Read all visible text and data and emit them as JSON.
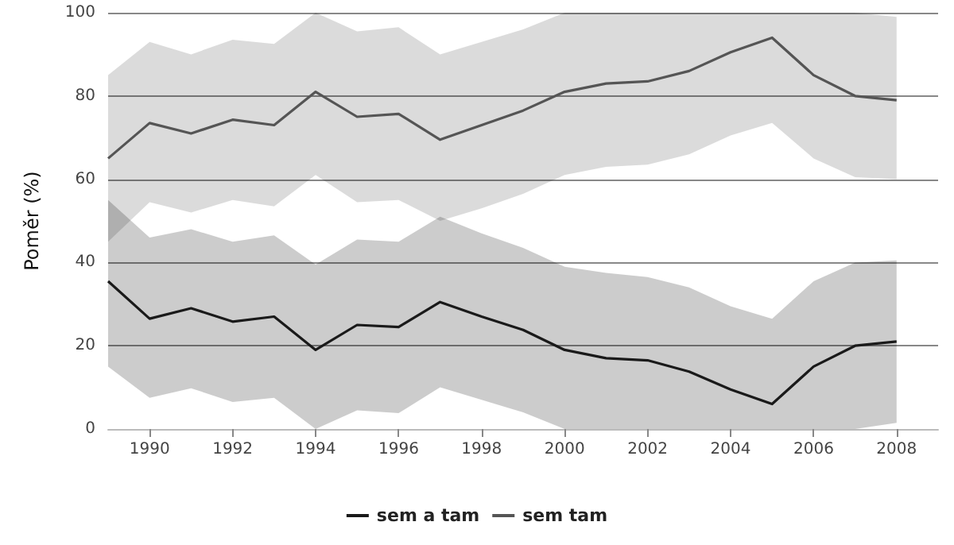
{
  "chart_data": {
    "type": "line",
    "ylabel": "Poměr (%)",
    "x": [
      1989,
      1990,
      1991,
      1992,
      1993,
      1994,
      1995,
      1996,
      1997,
      1998,
      1999,
      2000,
      2001,
      2002,
      2003,
      2004,
      2005,
      2006,
      2007,
      2008
    ],
    "series": [
      {
        "name": "sem a tam",
        "color": "#1a1a1a",
        "values": [
          35.5,
          26.5,
          29,
          25.8,
          27,
          19,
          25,
          24.5,
          30.5,
          27,
          23.8,
          19,
          17,
          16.5,
          13.8,
          9.5,
          6,
          15,
          20,
          21
        ],
        "lower": [
          15,
          7.5,
          9.8,
          6.5,
          7.5,
          0,
          4.5,
          3.8,
          10,
          7,
          4,
          0,
          0,
          0,
          0,
          0,
          0,
          0,
          0,
          1.5
        ],
        "upper": [
          55,
          46,
          48,
          45,
          46.5,
          39.5,
          45.5,
          45,
          51,
          47,
          43.5,
          39,
          37.5,
          36.5,
          34,
          29.5,
          26.5,
          35.5,
          40,
          40.5
        ]
      },
      {
        "name": "sem tam",
        "color": "#555555",
        "values": [
          65,
          73.5,
          71,
          74.3,
          73,
          81,
          75,
          75.7,
          69.5,
          73,
          76.5,
          81,
          83,
          83.5,
          86,
          90.5,
          94,
          85,
          80,
          79
        ],
        "lower": [
          45,
          54.5,
          52,
          55,
          53.5,
          61,
          54.5,
          55,
          50,
          53,
          56.5,
          61,
          63,
          63.5,
          66,
          70.5,
          73.5,
          65,
          60.5,
          60
        ],
        "upper": [
          85,
          93,
          90,
          93.5,
          92.5,
          100,
          95.5,
          96.5,
          90,
          93,
          96,
          100,
          100,
          100,
          100,
          100,
          100,
          100,
          100,
          99
        ]
      }
    ],
    "xlim": [
      1989,
      2009
    ],
    "xticks": [
      1990,
      1992,
      1994,
      1996,
      1998,
      2000,
      2002,
      2004,
      2006,
      2008
    ],
    "ylim": [
      0,
      100
    ],
    "yticks": [
      0,
      20,
      40,
      60,
      80,
      100
    ],
    "grid": "y",
    "legend": "bottom",
    "marker": "none",
    "line_style": "solid"
  }
}
